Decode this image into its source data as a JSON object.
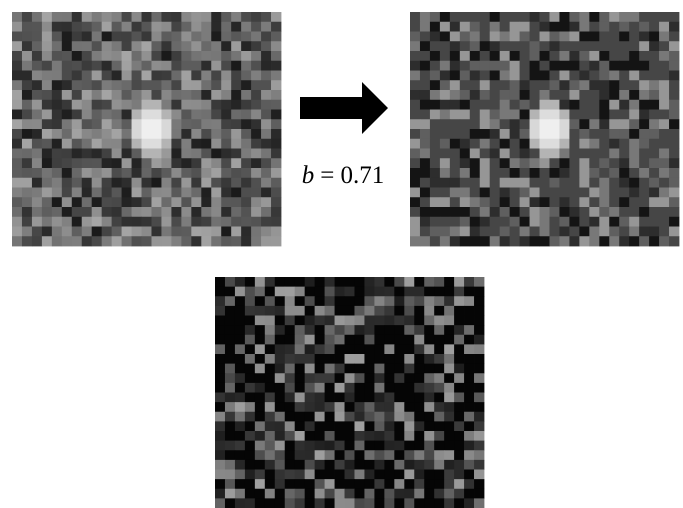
{
  "annotation": {
    "variable": "b",
    "equation": "= 0.71"
  }
}
